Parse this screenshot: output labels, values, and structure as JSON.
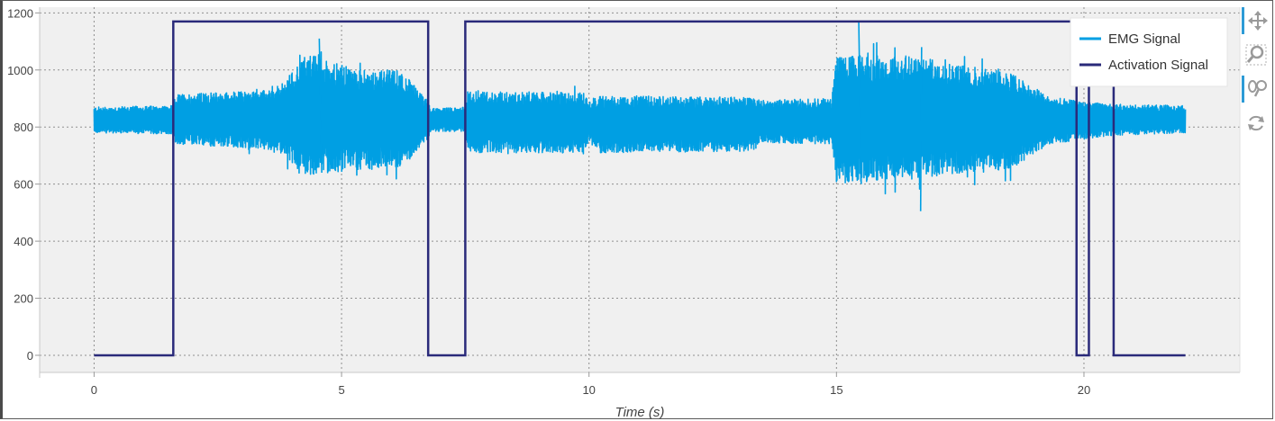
{
  "chart_data": {
    "type": "line",
    "xlabel": "Time (s)",
    "ylabel": "",
    "xlim": [
      -1.1,
      23.15
    ],
    "ylim": [
      -60,
      1220
    ],
    "x_ticks": [
      0,
      5,
      10,
      15,
      20
    ],
    "y_ticks": [
      0,
      200,
      400,
      600,
      800,
      1000,
      1200
    ],
    "grid": true,
    "legend_position": "top-right",
    "series": [
      {
        "name": "EMG Signal",
        "color": "#009fe3",
        "sample_rate_hz": 1000,
        "duration_s": 22.05,
        "envelope": [
          {
            "t": 0.0,
            "low": 780,
            "high": 870
          },
          {
            "t": 1.6,
            "low": 775,
            "high": 875
          },
          {
            "t": 1.65,
            "low": 740,
            "high": 915
          },
          {
            "t": 3.7,
            "low": 720,
            "high": 930
          },
          {
            "t": 4.3,
            "low": 630,
            "high": 1060
          },
          {
            "t": 5.3,
            "low": 650,
            "high": 1000
          },
          {
            "t": 6.2,
            "low": 660,
            "high": 1000
          },
          {
            "t": 6.75,
            "low": 760,
            "high": 890
          },
          {
            "t": 6.8,
            "low": 785,
            "high": 865
          },
          {
            "t": 7.5,
            "low": 785,
            "high": 870
          },
          {
            "t": 7.55,
            "low": 710,
            "high": 925
          },
          {
            "t": 9.9,
            "low": 710,
            "high": 920
          },
          {
            "t": 10.0,
            "low": 745,
            "high": 895
          },
          {
            "t": 10.2,
            "low": 710,
            "high": 910
          },
          {
            "t": 13.3,
            "low": 715,
            "high": 905
          },
          {
            "t": 13.5,
            "low": 745,
            "high": 895
          },
          {
            "t": 14.9,
            "low": 740,
            "high": 900
          },
          {
            "t": 15.0,
            "low": 600,
            "high": 1050
          },
          {
            "t": 16.5,
            "low": 620,
            "high": 1050
          },
          {
            "t": 18.5,
            "low": 650,
            "high": 990
          },
          {
            "t": 19.3,
            "low": 740,
            "high": 905
          },
          {
            "t": 20.5,
            "low": 770,
            "high": 880
          },
          {
            "t": 22.05,
            "low": 780,
            "high": 875
          }
        ],
        "extremes": {
          "max": 1170,
          "min": 505
        }
      },
      {
        "name": "Activation Signal",
        "color": "#2a2a7a",
        "x": [
          0,
          1.6,
          1.6,
          6.75,
          6.75,
          7.5,
          7.5,
          19.85,
          19.85,
          20.1,
          20.1,
          20.6,
          20.6,
          22.05
        ],
        "y": [
          0,
          0,
          1170,
          1170,
          0,
          0,
          1170,
          1170,
          0,
          0,
          1170,
          1170,
          0,
          0
        ]
      }
    ]
  },
  "toolbar": {
    "icons": [
      "pan-icon",
      "box-zoom-icon",
      "wheel-zoom-icon",
      "reset-icon"
    ]
  }
}
